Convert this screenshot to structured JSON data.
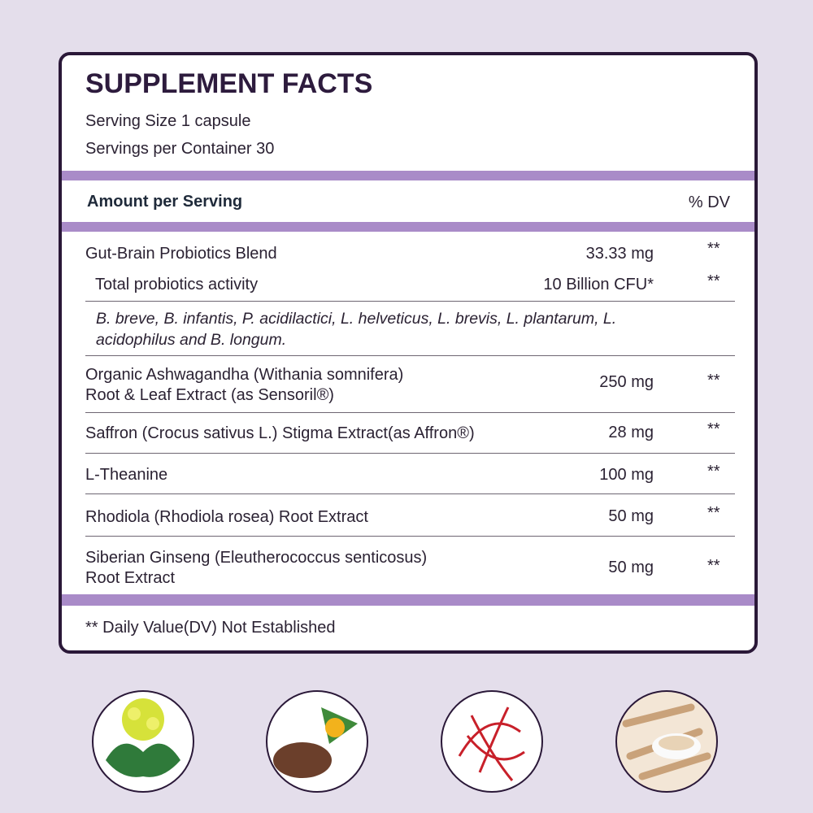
{
  "header": {
    "title": "SUPPLEMENT FACTS",
    "serving_size": "Serving Size 1 capsule",
    "servings_per_container": "Servings per Container 30"
  },
  "table": {
    "columns": [
      "Amount per Serving",
      "% DV"
    ],
    "rows": [
      {
        "name": [
          "Gut-Brain Probiotics Blend"
        ],
        "amount": "33.33 mg",
        "dv": "**"
      },
      {
        "name": [
          "Total probiotics activity"
        ],
        "amount": "10 Billion CFU*",
        "dv": "**"
      },
      {
        "name": [
          "B. breve, B. infantis, P. acidilactici, L. helveticus, L. brevis, L. plantarum, L.",
          "acidophilus and B. longum."
        ]
      },
      {
        "name": [
          "Organic Ashwagandha (Withania somnifera)",
          "Root & Leaf Extract (as Sensoril®)"
        ],
        "amount": "250 mg",
        "dv": "**"
      },
      {
        "name": [
          "Saffron (Crocus sativus L.) Stigma Extract(as Affron®)"
        ],
        "amount": "28 mg",
        "dv": "**"
      },
      {
        "name": [
          "L-Theanine"
        ],
        "amount": "100 mg",
        "dv": "**"
      },
      {
        "name": [
          "Rhodiola (Rhodiola rosea) Root Extract"
        ],
        "amount": "50 mg",
        "dv": "**"
      },
      {
        "name": [
          "Siberian Ginseng (Eleutherococcus senticosus)",
          "Root Extract"
        ],
        "amount": "50 mg",
        "dv": "**"
      }
    ]
  },
  "footnote": "** Daily Value(DV) Not Established"
}
